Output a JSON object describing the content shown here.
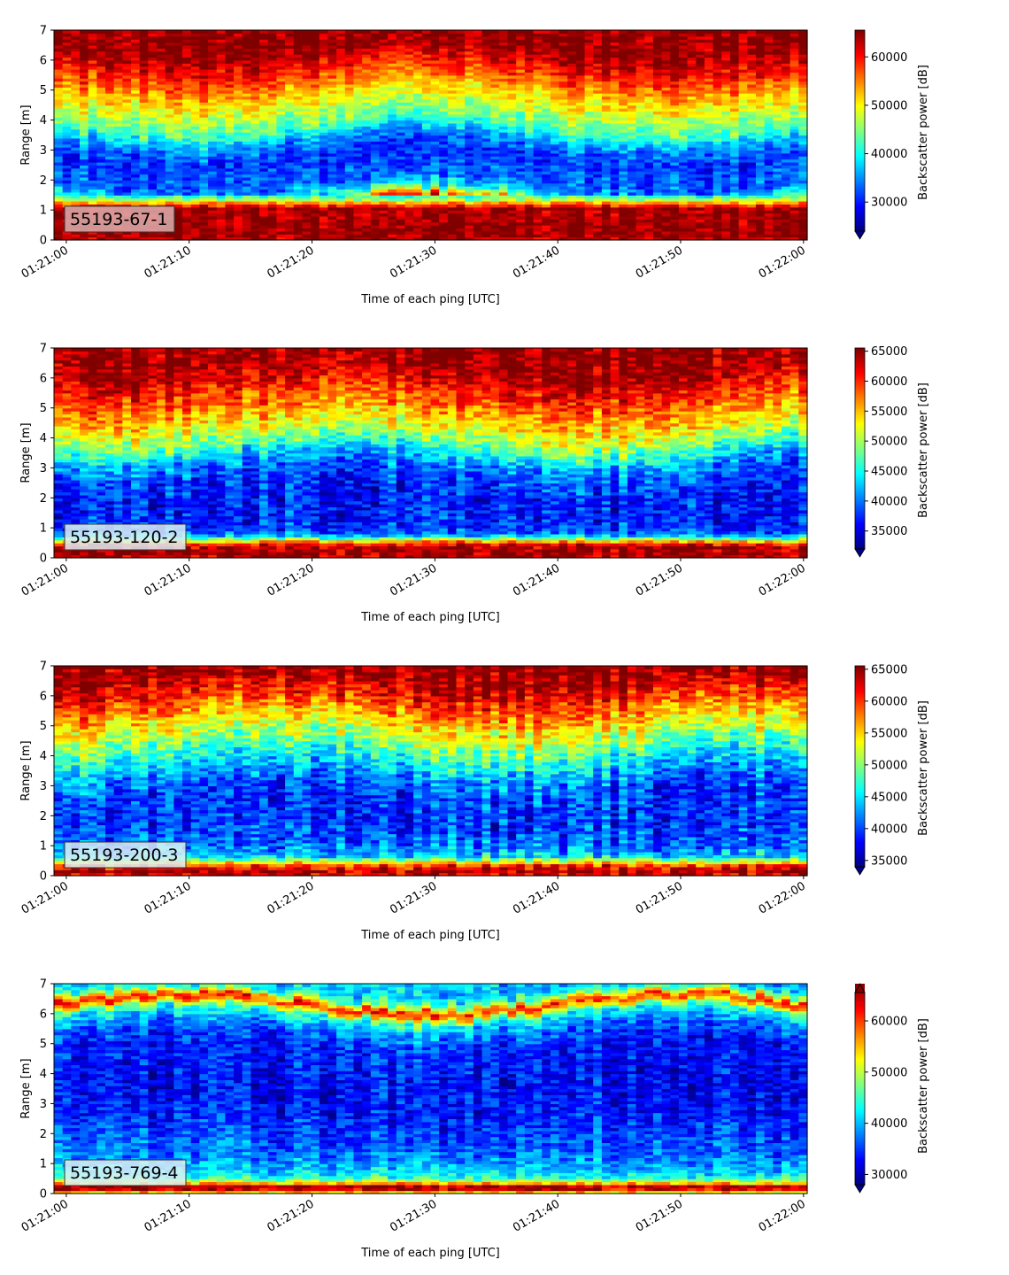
{
  "chart_data": [
    {
      "type": "heatmap",
      "label": "55193-67-1",
      "xlabel": "Time of each ping [UTC]",
      "ylabel": "Range [m]",
      "xticks": [
        "01:21:00",
        "01:21:10",
        "01:21:20",
        "01:21:30",
        "01:21:40",
        "01:21:50",
        "01:22:00"
      ],
      "xrange_seconds": [
        -1,
        60.3
      ],
      "yticks": [
        0,
        1,
        2,
        3,
        4,
        5,
        6,
        7
      ],
      "ylim": [
        0,
        7
      ],
      "colorbar": {
        "label": "Backscatter power [dB]",
        "vmin": 24000,
        "vmax": 65535,
        "ticks": [
          30000,
          40000,
          50000,
          60000
        ],
        "extend": "min",
        "colormap": "jet"
      },
      "profile": [
        {
          "y": 0.0,
          "v": 63000
        },
        {
          "y": 0.2,
          "v": 65000
        },
        {
          "y": 1.05,
          "v": 64000
        },
        {
          "y": 1.2,
          "v": 57000
        },
        {
          "y": 1.35,
          "v": 47000
        },
        {
          "y": 1.5,
          "v": 40000
        },
        {
          "y": 1.7,
          "v": 37000
        },
        {
          "y": 1.9,
          "v": 33000
        },
        {
          "y": 2.3,
          "v": 33000
        },
        {
          "y": 2.8,
          "v": 31000
        },
        {
          "y": 3.3,
          "v": 35000
        },
        {
          "y": 3.8,
          "v": 43000
        },
        {
          "y": 4.5,
          "v": 49000
        },
        {
          "y": 5.0,
          "v": 53000
        },
        {
          "y": 5.5,
          "v": 58000
        },
        {
          "y": 6.0,
          "v": 62000
        },
        {
          "y": 6.4,
          "v": 65000
        },
        {
          "y": 7.0,
          "v": 65000
        }
      ]
    },
    {
      "type": "heatmap",
      "label": "55193-120-2",
      "xlabel": "Time of each ping [UTC]",
      "ylabel": "Range [m]",
      "xticks": [
        "01:21:00",
        "01:21:10",
        "01:21:20",
        "01:21:30",
        "01:21:40",
        "01:21:50",
        "01:22:00"
      ],
      "xrange_seconds": [
        -1,
        60.3
      ],
      "yticks": [
        0,
        1,
        2,
        3,
        4,
        5,
        6,
        7
      ],
      "ylim": [
        0,
        7
      ],
      "colorbar": {
        "label": "Backscatter power [dB]",
        "vmin": 32000,
        "vmax": 65535,
        "ticks": [
          35000,
          40000,
          45000,
          50000,
          55000,
          60000,
          65000
        ],
        "extend": "min",
        "colormap": "jet"
      },
      "profile": [
        {
          "y": 0.0,
          "v": 63000
        },
        {
          "y": 0.1,
          "v": 65000
        },
        {
          "y": 0.4,
          "v": 64000
        },
        {
          "y": 0.55,
          "v": 56000
        },
        {
          "y": 0.7,
          "v": 44000
        },
        {
          "y": 0.9,
          "v": 38000
        },
        {
          "y": 1.5,
          "v": 37000
        },
        {
          "y": 2.2,
          "v": 37000
        },
        {
          "y": 2.8,
          "v": 39000
        },
        {
          "y": 3.3,
          "v": 42000
        },
        {
          "y": 3.8,
          "v": 48000
        },
        {
          "y": 4.5,
          "v": 54000
        },
        {
          "y": 5.0,
          "v": 57000
        },
        {
          "y": 5.5,
          "v": 60000
        },
        {
          "y": 6.0,
          "v": 63000
        },
        {
          "y": 6.5,
          "v": 65000
        },
        {
          "y": 7.0,
          "v": 65000
        }
      ]
    },
    {
      "type": "heatmap",
      "label": "55193-200-3",
      "xlabel": "Time of each ping [UTC]",
      "ylabel": "Range [m]",
      "xticks": [
        "01:21:00",
        "01:21:10",
        "01:21:20",
        "01:21:30",
        "01:21:40",
        "01:21:50",
        "01:22:00"
      ],
      "xrange_seconds": [
        -1,
        60.3
      ],
      "yticks": [
        0,
        1,
        2,
        3,
        4,
        5,
        6,
        7
      ],
      "ylim": [
        0,
        7
      ],
      "colorbar": {
        "label": "Backscatter power [dB]",
        "vmin": 34000,
        "vmax": 65535,
        "ticks": [
          35000,
          40000,
          45000,
          50000,
          55000,
          60000,
          65000
        ],
        "extend": "min",
        "colormap": "jet"
      },
      "profile": [
        {
          "y": 0.0,
          "v": 62000
        },
        {
          "y": 0.15,
          "v": 64000
        },
        {
          "y": 0.35,
          "v": 60000
        },
        {
          "y": 0.5,
          "v": 52000
        },
        {
          "y": 0.65,
          "v": 45000
        },
        {
          "y": 0.9,
          "v": 42000
        },
        {
          "y": 1.5,
          "v": 40000
        },
        {
          "y": 2.2,
          "v": 39500
        },
        {
          "y": 2.8,
          "v": 40000
        },
        {
          "y": 3.4,
          "v": 43000
        },
        {
          "y": 4.0,
          "v": 47000
        },
        {
          "y": 4.7,
          "v": 52000
        },
        {
          "y": 5.3,
          "v": 56000
        },
        {
          "y": 5.8,
          "v": 60000
        },
        {
          "y": 6.3,
          "v": 63000
        },
        {
          "y": 6.7,
          "v": 65000
        },
        {
          "y": 7.0,
          "v": 65000
        }
      ]
    },
    {
      "type": "heatmap",
      "label": "55193-769-4",
      "xlabel": "Time of each ping [UTC]",
      "ylabel": "Range [m]",
      "xticks": [
        "01:21:00",
        "01:21:10",
        "01:21:20",
        "01:21:30",
        "01:21:40",
        "01:21:50",
        "01:22:00"
      ],
      "xrange_seconds": [
        -1,
        60.3
      ],
      "yticks": [
        0,
        1,
        2,
        3,
        4,
        5,
        6,
        7
      ],
      "ylim": [
        0,
        7
      ],
      "colorbar": {
        "label": "Backscatter power [dB]",
        "vmin": 28000,
        "vmax": 65535,
        "ticks": [
          30000,
          40000,
          50000,
          60000
        ],
        "extend": "both",
        "colormap": "jet"
      },
      "profile": [
        {
          "y": 0.0,
          "v": 44000
        },
        {
          "y": 0.1,
          "v": 62000
        },
        {
          "y": 0.25,
          "v": 64000
        },
        {
          "y": 0.35,
          "v": 54000
        },
        {
          "y": 0.5,
          "v": 44000
        },
        {
          "y": 0.8,
          "v": 40000
        },
        {
          "y": 1.3,
          "v": 37000
        },
        {
          "y": 2.0,
          "v": 35000
        },
        {
          "y": 3.0,
          "v": 33000
        },
        {
          "y": 4.0,
          "v": 33000
        },
        {
          "y": 5.0,
          "v": 34000
        },
        {
          "y": 5.6,
          "v": 38000
        },
        {
          "y": 6.0,
          "v": 44000
        },
        {
          "y": 6.2,
          "v": 55000
        },
        {
          "y": 6.35,
          "v": 60000
        },
        {
          "y": 6.55,
          "v": 47000
        },
        {
          "y": 6.8,
          "v": 41000
        },
        {
          "y": 7.0,
          "v": 40000
        }
      ]
    }
  ]
}
